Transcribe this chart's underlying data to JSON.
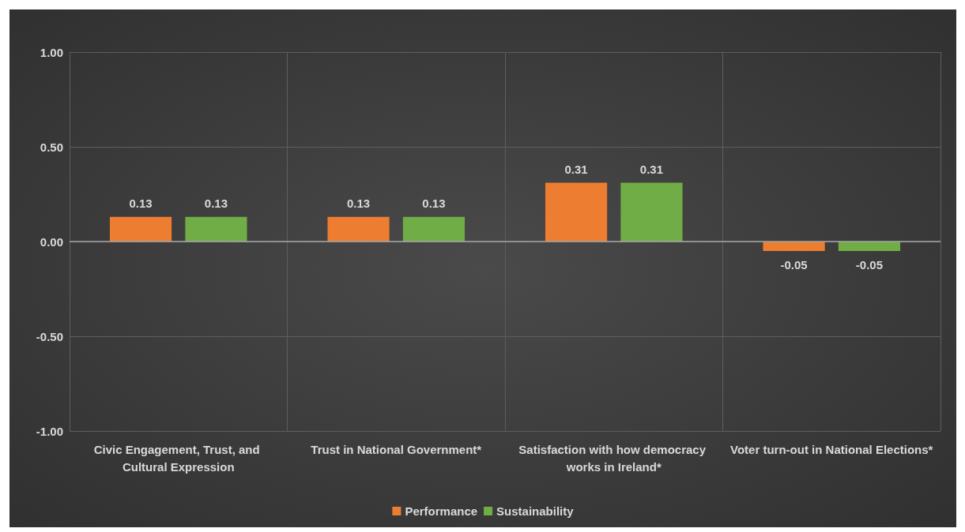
{
  "chart_data": {
    "type": "bar",
    "categories": [
      "Civic Engagement, Trust, and Cultural Expression",
      "Trust in National Government*",
      "Satisfaction with how democracy works in Ireland*",
      "Voter turn-out in National Elections*"
    ],
    "series": [
      {
        "name": "Performance",
        "color": "#ed7d31",
        "values": [
          0.13,
          0.13,
          0.31,
          -0.05
        ]
      },
      {
        "name": "Sustainability",
        "color": "#70ad47",
        "values": [
          0.13,
          0.13,
          0.31,
          -0.05
        ]
      }
    ],
    "ylim": [
      -1,
      1
    ],
    "yticks": [
      {
        "value": -1,
        "label": "-1.00"
      },
      {
        "value": -0.5,
        "label": "-0.50"
      },
      {
        "value": 0,
        "label": "0.00"
      },
      {
        "value": 0.5,
        "label": "0.50"
      },
      {
        "value": 1,
        "label": "1.00"
      }
    ],
    "grid": true,
    "legend": "bottom",
    "data_labels": true
  }
}
